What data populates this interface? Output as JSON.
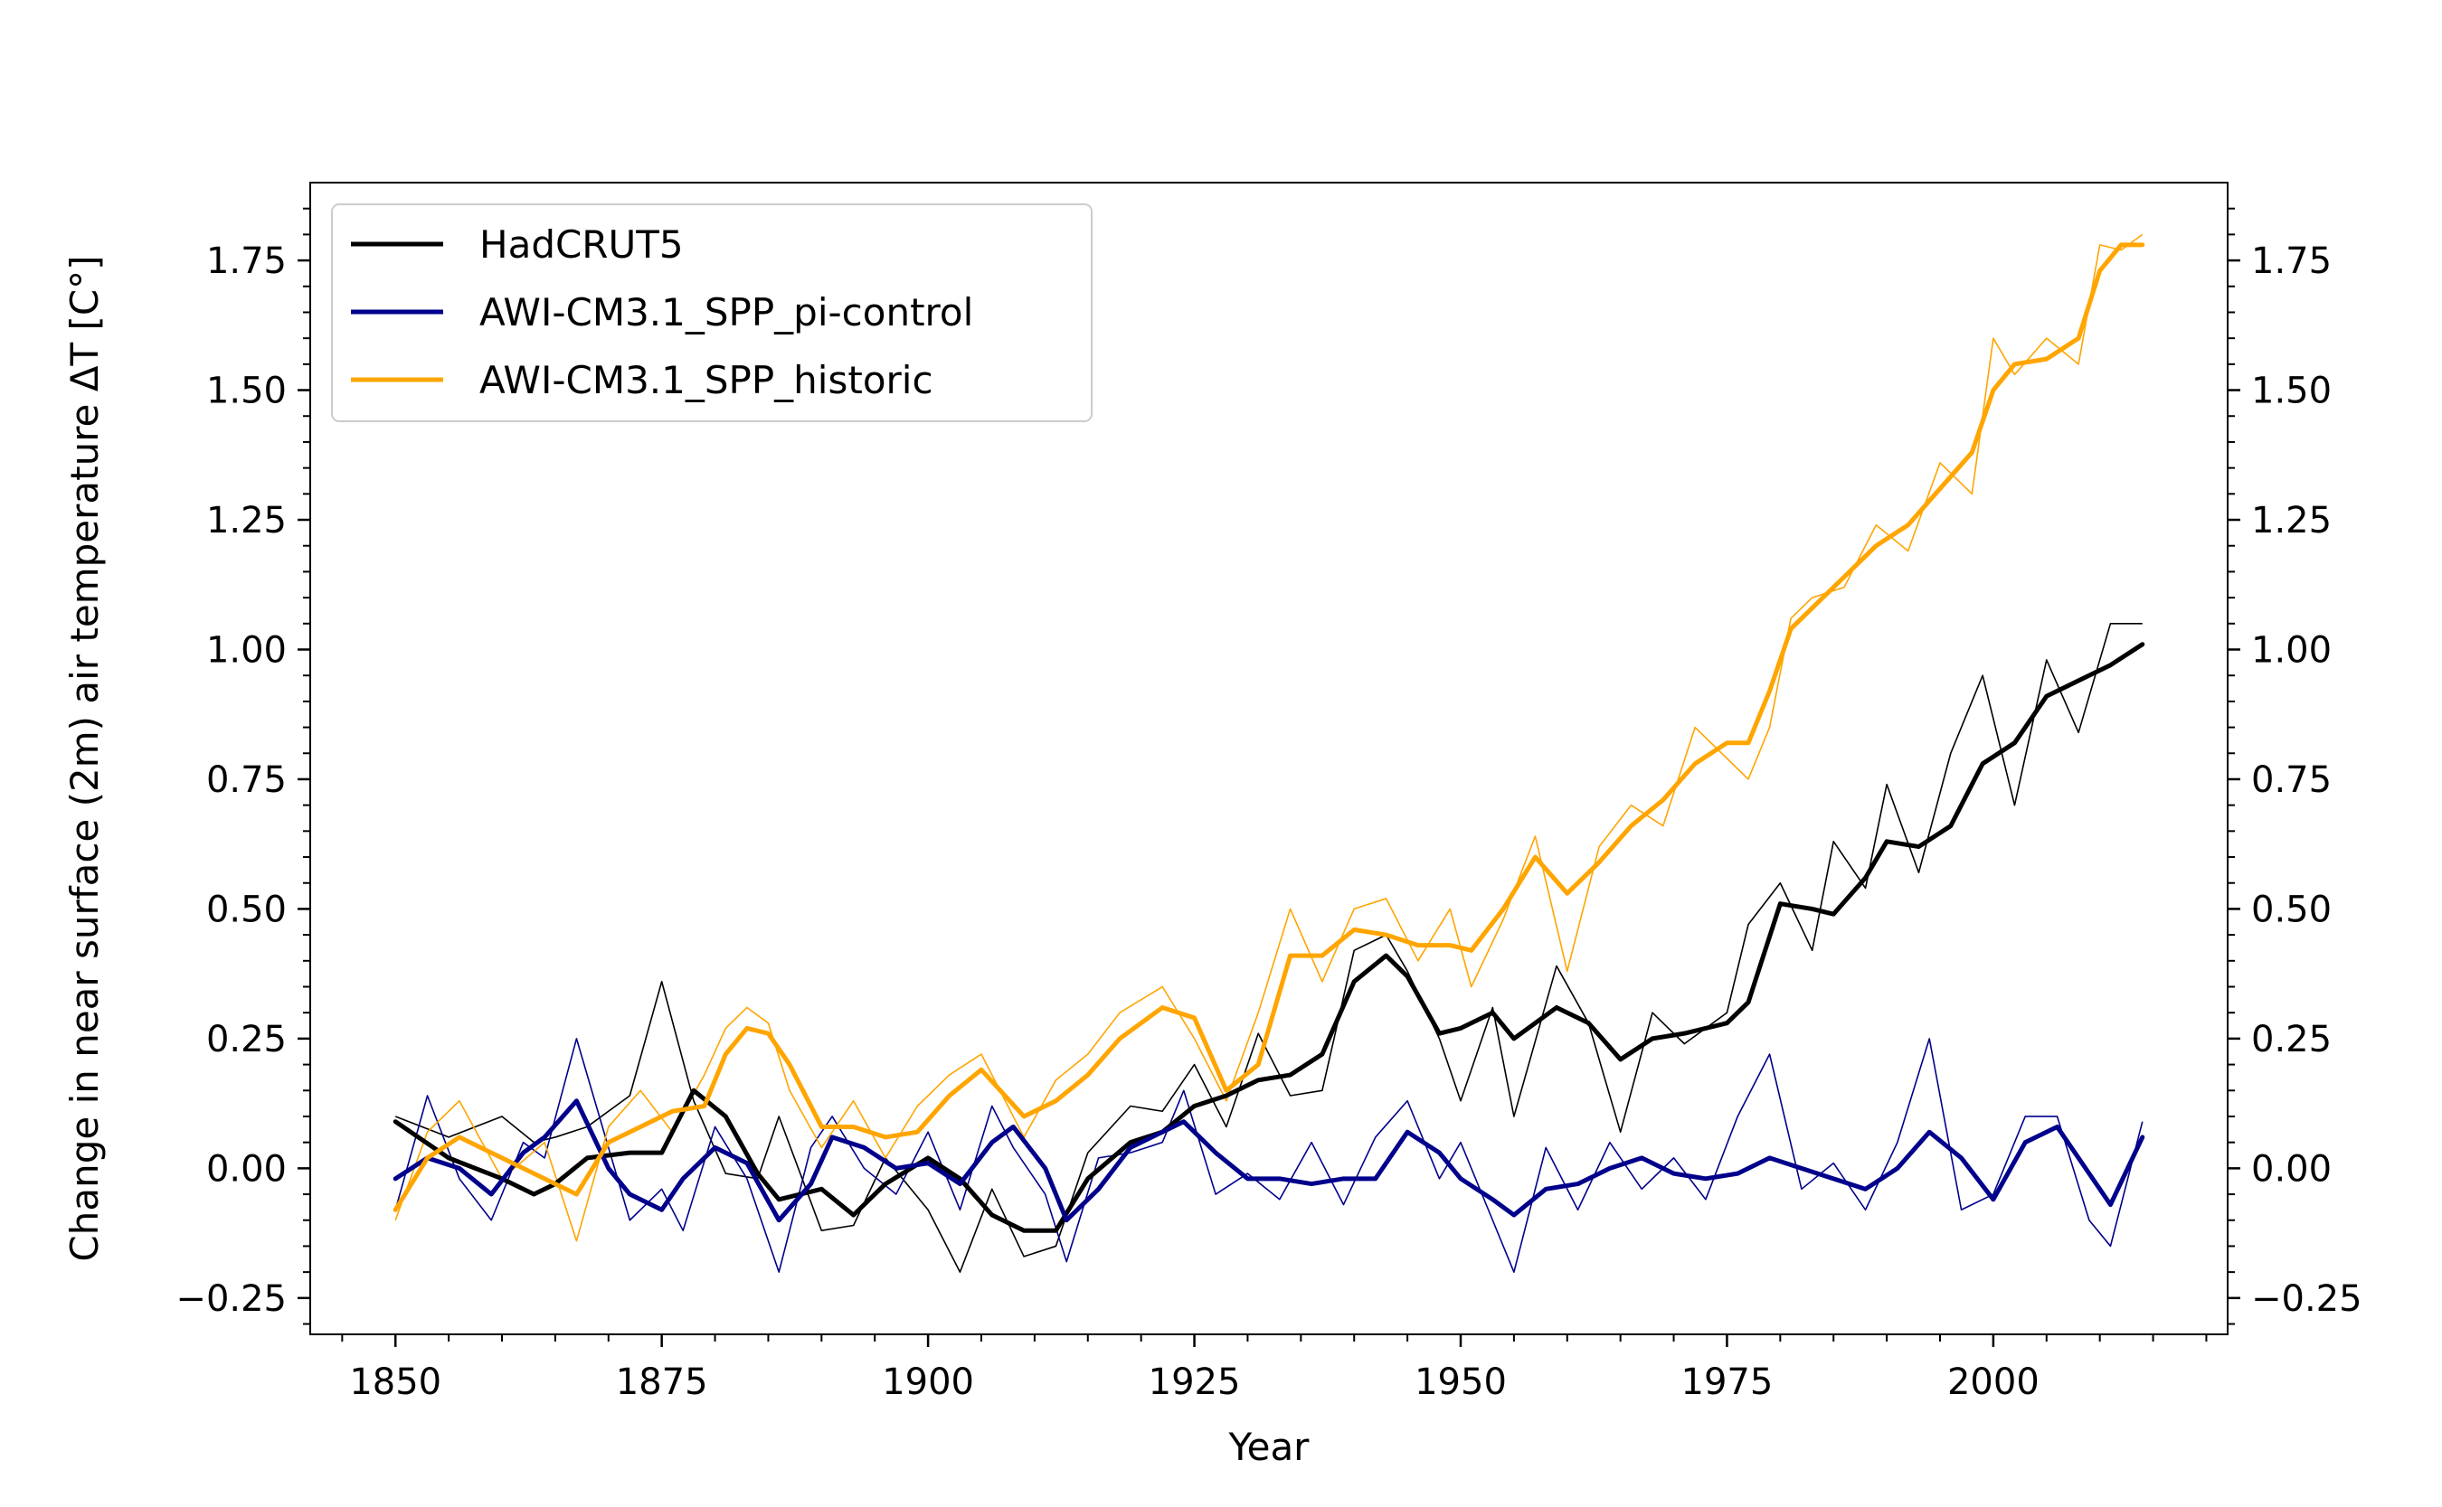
{
  "chart_data": {
    "type": "line",
    "title": "",
    "xlabel": "Year",
    "ylabel": "Change in near surface (2m) air temperature ΔT [C°]",
    "xlim": [
      1842,
      2022
    ],
    "ylim": [
      -0.32,
      1.9
    ],
    "x_ticks": [
      1850,
      1875,
      1900,
      1925,
      1950,
      1975,
      2000
    ],
    "x_tick_labels": [
      "1850",
      "1875",
      "1900",
      "1925",
      "1950",
      "1975",
      "2000"
    ],
    "y_ticks": [
      -0.25,
      0.0,
      0.25,
      0.5,
      0.75,
      1.0,
      1.25,
      1.5,
      1.75
    ],
    "y_tick_labels_left": [
      "−0.25",
      "0.00",
      "0.25",
      "0.50",
      "0.75",
      "1.00",
      "1.25",
      "1.50",
      "1.75"
    ],
    "y_tick_labels_right": [
      "−0.25",
      "0.00",
      "0.25",
      "0.50",
      "0.75",
      "1.00",
      "1.25",
      "1.50",
      "1.75"
    ],
    "legend_position": "top-left",
    "grid": false,
    "series": [
      {
        "name": "HadCRUT5",
        "color": "#000000",
        "x": [
          1850,
          1855,
          1860,
          1863,
          1865,
          1868,
          1872,
          1875,
          1878,
          1881,
          1884,
          1886,
          1890,
          1893,
          1896,
          1900,
          1903,
          1906,
          1909,
          1912,
          1915,
          1919,
          1922,
          1925,
          1928,
          1931,
          1934,
          1937,
          1940,
          1943,
          1945,
          1948,
          1950,
          1953,
          1955,
          1959,
          1962,
          1965,
          1968,
          1971,
          1975,
          1977,
          1980,
          1983,
          1985,
          1988,
          1990,
          1993,
          1996,
          1999,
          2002,
          2005,
          2008,
          2011,
          2014
        ],
        "values": [
          0.09,
          0.02,
          -0.02,
          -0.05,
          -0.03,
          0.02,
          0.03,
          0.03,
          0.15,
          0.1,
          -0.01,
          -0.06,
          -0.04,
          -0.09,
          -0.03,
          0.02,
          -0.02,
          -0.09,
          -0.12,
          -0.12,
          -0.02,
          0.05,
          0.07,
          0.12,
          0.14,
          0.17,
          0.18,
          0.22,
          0.36,
          0.41,
          0.37,
          0.26,
          0.27,
          0.3,
          0.25,
          0.31,
          0.28,
          0.21,
          0.25,
          0.26,
          0.28,
          0.32,
          0.51,
          0.5,
          0.49,
          0.56,
          0.63,
          0.62,
          0.66,
          0.78,
          0.82,
          0.91,
          0.94,
          0.97,
          1.01
        ],
        "raw_values": [
          0.1,
          0.06,
          0.1,
          0.05,
          0.06,
          0.08,
          0.14,
          0.36,
          0.13,
          -0.01,
          -0.02,
          0.1,
          -0.12,
          -0.11,
          0.02,
          -0.08,
          -0.2,
          -0.04,
          -0.17,
          -0.15,
          0.03,
          0.12,
          0.11,
          0.2,
          0.08,
          0.26,
          0.14,
          0.15,
          0.42,
          0.45,
          0.38,
          0.25,
          0.13,
          0.31,
          0.1,
          0.39,
          0.28,
          0.07,
          0.3,
          0.24,
          0.3,
          0.47,
          0.55,
          0.42,
          0.63,
          0.54,
          0.74,
          0.57,
          0.8,
          0.95,
          0.7,
          0.98,
          0.84,
          1.05,
          1.05
        ]
      },
      {
        "name": "AWI-CM3.1_SPP_pi-control",
        "color": "#00008b",
        "x": [
          1850,
          1853,
          1856,
          1859,
          1862,
          1864,
          1867,
          1870,
          1872,
          1875,
          1877,
          1880,
          1883,
          1886,
          1889,
          1891,
          1894,
          1897,
          1900,
          1903,
          1906,
          1908,
          1911,
          1913,
          1916,
          1919,
          1922,
          1924,
          1927,
          1930,
          1933,
          1936,
          1939,
          1942,
          1945,
          1948,
          1950,
          1953,
          1955,
          1958,
          1961,
          1964,
          1967,
          1970,
          1973,
          1976,
          1979,
          1982,
          1985,
          1988,
          1991,
          1994,
          1997,
          2000,
          2003,
          2006,
          2009,
          2011,
          2014
        ],
        "values": [
          -0.02,
          0.02,
          0.0,
          -0.05,
          0.03,
          0.06,
          0.13,
          0.0,
          -0.05,
          -0.08,
          -0.02,
          0.04,
          0.01,
          -0.1,
          -0.03,
          0.06,
          0.04,
          0.0,
          0.01,
          -0.03,
          0.05,
          0.08,
          0.0,
          -0.1,
          -0.04,
          0.04,
          0.07,
          0.09,
          0.03,
          -0.02,
          -0.02,
          -0.03,
          -0.02,
          -0.02,
          0.07,
          0.03,
          -0.02,
          -0.06,
          -0.09,
          -0.04,
          -0.03,
          0.0,
          0.02,
          -0.01,
          -0.02,
          -0.01,
          0.02,
          0.0,
          -0.02,
          -0.04,
          0.0,
          0.07,
          0.02,
          -0.06,
          0.05,
          0.08,
          -0.01,
          -0.07,
          0.06
        ],
        "raw_values": [
          -0.08,
          0.14,
          -0.02,
          -0.1,
          0.05,
          0.02,
          0.25,
          0.04,
          -0.1,
          -0.04,
          -0.12,
          0.08,
          -0.02,
          -0.2,
          0.04,
          0.1,
          0.0,
          -0.05,
          0.07,
          -0.08,
          0.12,
          0.04,
          -0.05,
          -0.18,
          0.02,
          0.03,
          0.05,
          0.15,
          -0.05,
          -0.01,
          -0.06,
          0.05,
          -0.07,
          0.06,
          0.13,
          -0.02,
          0.05,
          -0.1,
          -0.2,
          0.04,
          -0.08,
          0.05,
          -0.04,
          0.02,
          -0.06,
          0.1,
          0.22,
          -0.04,
          0.01,
          -0.08,
          0.05,
          0.25,
          -0.08,
          -0.05,
          0.1,
          0.1,
          -0.1,
          -0.15,
          0.09
        ]
      },
      {
        "name": "AWI-CM3.1_SPP_historic",
        "color": "#ffa500",
        "x": [
          1850,
          1853,
          1856,
          1860,
          1864,
          1867,
          1870,
          1873,
          1876,
          1879,
          1881,
          1883,
          1885,
          1887,
          1890,
          1893,
          1896,
          1899,
          1902,
          1905,
          1909,
          1912,
          1915,
          1918,
          1922,
          1925,
          1928,
          1931,
          1934,
          1937,
          1940,
          1943,
          1946,
          1949,
          1951,
          1954,
          1957,
          1960,
          1963,
          1966,
          1969,
          1972,
          1975,
          1977,
          1979,
          1981,
          1983,
          1986,
          1989,
          1992,
          1995,
          1998,
          2000,
          2002,
          2005,
          2008,
          2010,
          2012,
          2014
        ],
        "values": [
          -0.08,
          0.02,
          0.06,
          0.02,
          -0.02,
          -0.05,
          0.05,
          0.08,
          0.11,
          0.12,
          0.22,
          0.27,
          0.26,
          0.2,
          0.08,
          0.08,
          0.06,
          0.07,
          0.14,
          0.19,
          0.1,
          0.13,
          0.18,
          0.25,
          0.31,
          0.29,
          0.15,
          0.2,
          0.41,
          0.41,
          0.46,
          0.45,
          0.43,
          0.43,
          0.42,
          0.5,
          0.6,
          0.53,
          0.59,
          0.66,
          0.71,
          0.78,
          0.82,
          0.82,
          0.92,
          1.04,
          1.08,
          1.14,
          1.2,
          1.24,
          1.31,
          1.38,
          1.5,
          1.55,
          1.56,
          1.6,
          1.73,
          1.78,
          1.78
        ],
        "raw_values": [
          -0.1,
          0.07,
          0.13,
          -0.02,
          0.05,
          -0.14,
          0.08,
          0.15,
          0.07,
          0.18,
          0.27,
          0.31,
          0.28,
          0.15,
          0.04,
          0.13,
          0.02,
          0.12,
          0.18,
          0.22,
          0.06,
          0.17,
          0.22,
          0.3,
          0.35,
          0.25,
          0.13,
          0.3,
          0.5,
          0.36,
          0.5,
          0.52,
          0.4,
          0.5,
          0.35,
          0.48,
          0.64,
          0.38,
          0.62,
          0.7,
          0.66,
          0.85,
          0.79,
          0.75,
          0.85,
          1.06,
          1.1,
          1.12,
          1.24,
          1.19,
          1.36,
          1.3,
          1.6,
          1.53,
          1.6,
          1.55,
          1.78,
          1.77,
          1.8
        ]
      }
    ]
  }
}
